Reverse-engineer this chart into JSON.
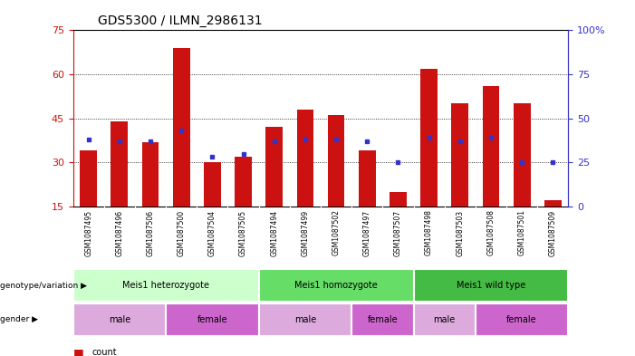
{
  "title": "GDS5300 / ILMN_2986131",
  "samples": [
    "GSM1087495",
    "GSM1087496",
    "GSM1087506",
    "GSM1087500",
    "GSM1087504",
    "GSM1087505",
    "GSM1087494",
    "GSM1087499",
    "GSM1087502",
    "GSM1087497",
    "GSM1087507",
    "GSM1087498",
    "GSM1087503",
    "GSM1087508",
    "GSM1087501",
    "GSM1087509"
  ],
  "counts": [
    34,
    44,
    37,
    69,
    30,
    32,
    42,
    48,
    46,
    34,
    20,
    62,
    50,
    56,
    50,
    17
  ],
  "percentiles": [
    38,
    37,
    37,
    43,
    28,
    30,
    37,
    38,
    38,
    37,
    25,
    39,
    37,
    39,
    25,
    25
  ],
  "ylim_left": [
    15,
    75
  ],
  "ylim_right": [
    0,
    100
  ],
  "yticks_left": [
    15,
    30,
    45,
    60,
    75
  ],
  "yticks_right": [
    0,
    25,
    50,
    75,
    100
  ],
  "bar_color": "#cc1111",
  "dot_color": "#3333cc",
  "genotype_groups": [
    {
      "label": "Meis1 heterozygote",
      "start": 0,
      "end": 6,
      "color": "#ccffcc"
    },
    {
      "label": "Meis1 homozygote",
      "start": 6,
      "end": 11,
      "color": "#66dd66"
    },
    {
      "label": "Meis1 wild type",
      "start": 11,
      "end": 16,
      "color": "#44bb44"
    }
  ],
  "gender_groups": [
    {
      "label": "male",
      "start": 0,
      "end": 3,
      "color": "#ddaadd"
    },
    {
      "label": "female",
      "start": 3,
      "end": 6,
      "color": "#cc66cc"
    },
    {
      "label": "male",
      "start": 6,
      "end": 9,
      "color": "#ddaadd"
    },
    {
      "label": "female",
      "start": 9,
      "end": 11,
      "color": "#cc66cc"
    },
    {
      "label": "male",
      "start": 11,
      "end": 13,
      "color": "#ddaadd"
    },
    {
      "label": "female",
      "start": 13,
      "end": 16,
      "color": "#cc66cc"
    }
  ],
  "tick_row_color": "#cccccc",
  "legend_count_color": "#cc1111",
  "legend_pct_color": "#3333cc",
  "bar_width": 0.55
}
